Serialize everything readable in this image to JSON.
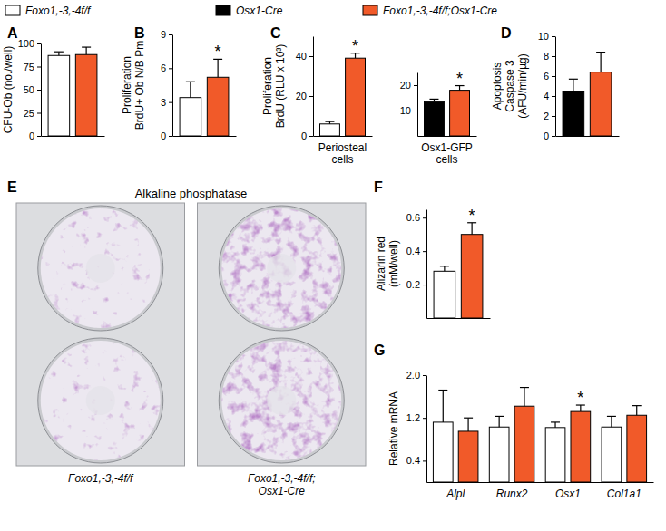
{
  "figure_legend": {
    "entries": [
      {
        "name": "Foxo1,-3,-4f/f",
        "color": "#ffffff"
      },
      {
        "name": "Osx1-Cre",
        "color": "#000000"
      },
      {
        "name": "Foxo1,-3,-4f/f;Osx1-Cre",
        "color": "#f15a29"
      }
    ]
  },
  "chart_data": [
    {
      "panel": "A",
      "type": "bar",
      "ylabel": [
        "CFU-Ob (no./well)"
      ],
      "categories": [
        null
      ],
      "ylim": [
        0,
        100
      ],
      "yticks": [
        0,
        25,
        50,
        75,
        100
      ],
      "series": [
        {
          "color": "#ffffff",
          "values": [
            87
          ],
          "errors": [
            4
          ]
        },
        {
          "color": "#f15a29",
          "values": [
            88
          ],
          "errors": [
            8
          ]
        }
      ]
    },
    {
      "panel": "B",
      "type": "bar",
      "ylabel": [
        "Proliferation",
        "BrdU+ Ob N/B Pm"
      ],
      "categories": [
        null
      ],
      "ylim": [
        0,
        9
      ],
      "yticks": [
        0,
        3,
        6,
        9
      ],
      "series": [
        {
          "color": "#ffffff",
          "values": [
            3.4
          ],
          "errors": [
            1.4
          ]
        },
        {
          "color": "#f15a29",
          "values": [
            5.2
          ],
          "errors": [
            1.6
          ],
          "annotations": [
            "*"
          ]
        }
      ]
    },
    {
      "panel": "C",
      "type": "bar",
      "ylabel": [
        "Proliferation",
        "BrdU (RLU x 10³)"
      ],
      "categories": [
        "Periosteal cells"
      ],
      "ylim": [
        0,
        50
      ],
      "yticks": [
        0,
        20,
        40
      ],
      "series": [
        {
          "color": "#ffffff",
          "values": [
            6
          ],
          "errors": [
            1.2
          ]
        },
        {
          "color": "#f15a29",
          "values": [
            39
          ],
          "errors": [
            2.5
          ],
          "annotations": [
            "*"
          ]
        }
      ]
    },
    {
      "type": "bar",
      "categories": [
        "Osx1-GFP cells"
      ],
      "ylim": [
        0,
        25
      ],
      "yticks": [
        10,
        20
      ],
      "series": [
        {
          "color": "#000000",
          "values": [
            13.5
          ],
          "errors": [
            1
          ]
        },
        {
          "color": "#f15a29",
          "values": [
            18
          ],
          "errors": [
            1.8
          ],
          "annotations": [
            "*"
          ]
        }
      ]
    },
    {
      "panel": "D",
      "type": "bar",
      "ylabel": [
        "Apoptosis",
        "Caspase 3",
        "(AFU/min/µg)"
      ],
      "categories": [
        null
      ],
      "ylim": [
        0,
        10
      ],
      "yticks": [
        0,
        2,
        4,
        6,
        8,
        10
      ],
      "series": [
        {
          "color": "#000000",
          "values": [
            4.5
          ],
          "errors": [
            1.2
          ]
        },
        {
          "color": "#f15a29",
          "values": [
            6.4
          ],
          "errors": [
            2.0
          ]
        }
      ]
    },
    {
      "panel": "E",
      "type": "image",
      "title": "Alkaline phosphatase",
      "captions": [
        [
          "Foxo1,-3,-4f/f"
        ],
        [
          "Foxo1,-3,-4f/f;",
          "Osx1-Cre"
        ]
      ]
    },
    {
      "panel": "F",
      "type": "bar",
      "ylabel": [
        "Alizarin red",
        "(mM/well)"
      ],
      "categories": [
        null
      ],
      "ylim": [
        0,
        0.65
      ],
      "yticks": [
        0.2,
        0.4,
        0.6
      ],
      "series": [
        {
          "color": "#ffffff",
          "values": [
            0.28
          ],
          "errors": [
            0.03
          ]
        },
        {
          "color": "#f15a29",
          "values": [
            0.5
          ],
          "errors": [
            0.07
          ],
          "annotations": [
            "*"
          ]
        }
      ]
    },
    {
      "panel": "G",
      "type": "bar",
      "ylabel": [
        "Relative mRNA"
      ],
      "categories": [
        "Alpl",
        "Runx2",
        "Osx1",
        "Col1a1"
      ],
      "ylim": [
        0,
        2
      ],
      "yticks": [
        0.4,
        1.2,
        {
          "value": 2,
          "label": "2.0"
        }
      ],
      "series": [
        {
          "color": "#ffffff",
          "values": [
            1.12,
            1.03,
            1.02,
            1.03
          ],
          "errors": [
            0.6,
            0.2,
            0.1,
            0.2
          ]
        },
        {
          "color": "#f15a29",
          "values": [
            0.95,
            1.42,
            1.32,
            1.25
          ],
          "errors": [
            0.25,
            0.35,
            0.12,
            0.18
          ],
          "annotations": [
            null,
            null,
            "*",
            null
          ]
        }
      ]
    }
  ]
}
